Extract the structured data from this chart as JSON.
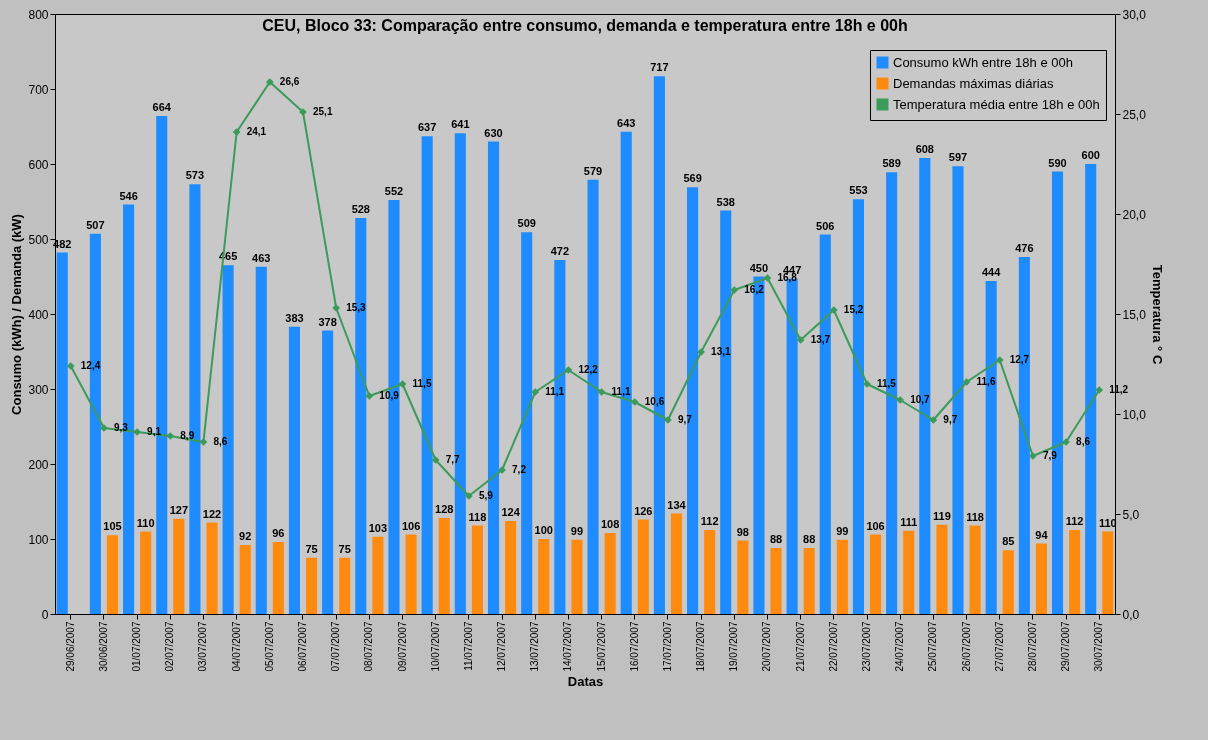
{
  "chart_data": {
    "type": "bar",
    "title": "CEU, Bloco 33: Comparação entre consumo, demanda e temperatura entre 18h e 00h",
    "xlabel": "Datas",
    "ylabel": "Consumo (kWh) /  Demanda (kW)",
    "y2label": "Temperatura ° C",
    "categories": [
      "29/06/2007",
      "30/06/2007",
      "01/07/2007",
      "02/07/2007",
      "03/07/2007",
      "04/07/2007",
      "05/07/2007",
      "06/07/2007",
      "07/07/2007",
      "08/07/2007",
      "09/07/2007",
      "10/07/2007",
      "11/07/2007",
      "12/07/2007",
      "13/07/2007",
      "14/07/2007",
      "15/07/2007",
      "16/07/2007",
      "17/07/2007",
      "18/07/2007",
      "19/07/2007",
      "20/07/2007",
      "21/07/2007",
      "22/07/2007",
      "23/07/2007",
      "24/07/2007",
      "25/07/2007",
      "26/07/2007",
      "27/07/2007",
      "28/07/2007",
      "29/07/2007",
      "30/07/2007"
    ],
    "series": [
      {
        "name": "Consumo kWh entre 18h e 00h",
        "type": "bar",
        "color": "#1e8cff",
        "values": [
          482,
          507,
          546,
          664,
          573,
          465,
          463,
          383,
          378,
          528,
          552,
          637,
          641,
          630,
          509,
          472,
          579,
          643,
          717,
          569,
          538,
          450,
          447,
          506,
          553,
          589,
          608,
          597,
          444,
          476,
          590,
          600
        ]
      },
      {
        "name": "Demandas máximas diárias",
        "type": "bar",
        "color": "#ff8a10",
        "values": [
          null,
          105,
          110,
          127,
          122,
          92,
          96,
          75,
          75,
          103,
          106,
          128,
          118,
          124,
          100,
          99,
          108,
          126,
          134,
          112,
          98,
          88,
          88,
          99,
          106,
          111,
          119,
          118,
          85,
          94,
          112,
          110
        ]
      },
      {
        "name": "Temperatura média entre 18h e 00h",
        "type": "line",
        "axis": "y2",
        "color": "#3c9a5a",
        "marker": "diamond",
        "values": [
          12.4,
          9.3,
          9.1,
          8.9,
          8.6,
          24.1,
          26.6,
          25.1,
          15.3,
          10.9,
          11.5,
          7.7,
          5.9,
          7.2,
          11.1,
          12.2,
          11.1,
          10.6,
          9.7,
          13.1,
          16.2,
          16.8,
          13.7,
          15.2,
          11.5,
          10.7,
          9.7,
          11.6,
          12.7,
          7.9,
          8.6,
          11.2
        ],
        "value_labels": [
          "12,4",
          "9,3",
          "9,1",
          "8,9",
          "8,6",
          "24,1",
          "26,6",
          "25,1",
          "15,3",
          "10,9",
          "11,5",
          "7,7",
          "5,9",
          "7,2",
          "11,1",
          "12,2",
          "11,1",
          "10,6",
          "9,7",
          "13,1",
          "16,2",
          "16,8",
          "13,7",
          "15,2",
          "11,5",
          "10,7",
          "9,7",
          "11,6",
          "12,7",
          "7,9",
          "8,6",
          "11,2"
        ]
      }
    ],
    "data_labels": true,
    "ylim": [
      0,
      800
    ],
    "yticks": [
      0,
      100,
      200,
      300,
      400,
      500,
      600,
      700,
      800
    ],
    "y2lim": [
      0,
      30
    ],
    "y2ticks": [
      {
        "value": 0,
        "label": "0,0"
      },
      {
        "value": 5,
        "label": "5,0"
      },
      {
        "value": 10,
        "label": "10,0"
      },
      {
        "value": 15,
        "label": "15,0"
      },
      {
        "value": 20,
        "label": "20,0"
      },
      {
        "value": 25,
        "label": "25,0"
      },
      {
        "value": 30,
        "label": "30,0"
      }
    ],
    "grid": false,
    "legend": "top right"
  }
}
